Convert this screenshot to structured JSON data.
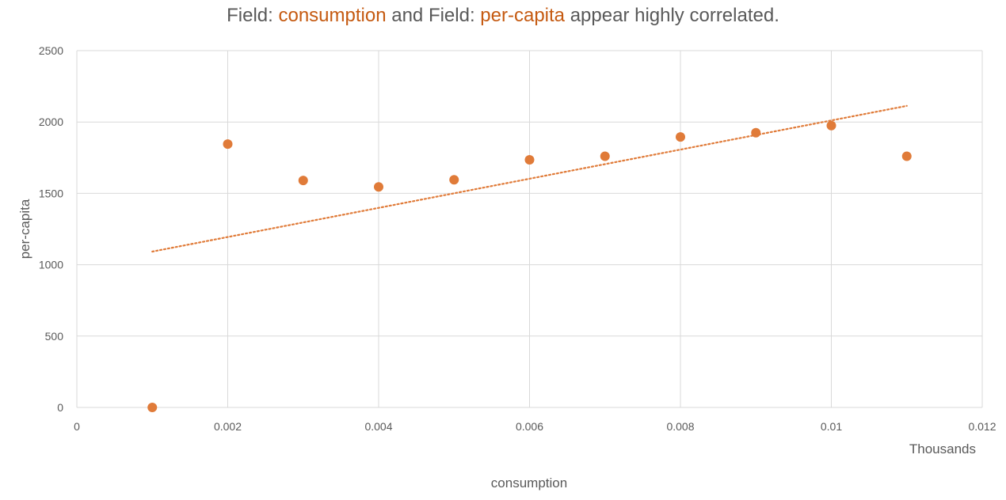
{
  "chart_data": {
    "type": "scatter",
    "title_parts": [
      {
        "text": "Field: ",
        "highlight": false
      },
      {
        "text": "consumption",
        "highlight": true
      },
      {
        "text": " and Field: ",
        "highlight": false
      },
      {
        "text": "per-capita",
        "highlight": true
      },
      {
        "text": " appear highly correlated.",
        "highlight": false
      }
    ],
    "xlabel": "consumption",
    "ylabel": "per-capita",
    "x_unit_label": "Thousands",
    "xlim": [
      0,
      0.012
    ],
    "ylim": [
      0,
      2500
    ],
    "x_ticks": [
      0,
      0.002,
      0.004,
      0.006,
      0.008,
      0.01,
      0.012
    ],
    "x_tick_labels": [
      "0",
      "0.002",
      "0.004",
      "0.006",
      "0.008",
      "0.01",
      "0.012"
    ],
    "y_ticks": [
      0,
      500,
      1000,
      1500,
      2000,
      2500
    ],
    "y_tick_labels": [
      "0",
      "500",
      "1000",
      "1500",
      "2000",
      "2500"
    ],
    "grid": true,
    "series": [
      {
        "x": [
          0.001,
          0.002,
          0.003,
          0.004,
          0.005,
          0.006,
          0.007,
          0.008,
          0.009,
          0.01,
          0.011
        ],
        "y": [
          0,
          1845,
          1590,
          1545,
          1595,
          1735,
          1760,
          1895,
          1925,
          1975,
          1760
        ]
      }
    ],
    "trendline": {
      "style": "dotted",
      "x": [
        0.001,
        0.011
      ],
      "y": [
        1092,
        2113
      ]
    },
    "colors": {
      "point": "#e07b39",
      "trend": "#e07b39",
      "highlight": "#c55a11",
      "grid": "#d9d9d9",
      "text": "#595959"
    }
  }
}
